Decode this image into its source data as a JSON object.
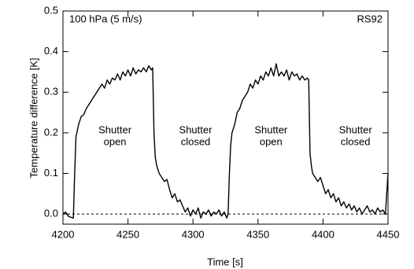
{
  "chart_data": {
    "type": "line",
    "xlabel": "Time [s]",
    "ylabel": "Temperature difference [K]",
    "corner_left": "100 hPa (5 m/s)",
    "corner_right": "RS92",
    "annotations": [
      {
        "x": 4240,
        "y": 0.19,
        "lines": [
          "Shutter",
          "open"
        ]
      },
      {
        "x": 4302,
        "y": 0.19,
        "lines": [
          "Shutter",
          "closed"
        ]
      },
      {
        "x": 4360,
        "y": 0.19,
        "lines": [
          "Shutter",
          "open"
        ]
      },
      {
        "x": 4425,
        "y": 0.19,
        "lines": [
          "Shutter",
          "closed"
        ]
      }
    ],
    "hline": 0,
    "xlim": [
      4200,
      4450
    ],
    "xticks": [
      4200,
      4250,
      4300,
      4350,
      4400,
      4450
    ],
    "ylim": [
      -0.025,
      0.5
    ],
    "yticks": [
      {
        "value": 0,
        "label": "0.0"
      },
      0.1,
      0.2,
      0.3,
      0.4,
      0.5
    ],
    "series": [
      {
        "color": "#000000",
        "x": [
          4200,
          4202,
          4204,
          4206,
          4208,
          4209,
          4210,
          4212,
          4214,
          4216,
          4218,
          4220,
          4222,
          4224,
          4226,
          4228,
          4230,
          4232,
          4234,
          4236,
          4238,
          4240,
          4242,
          4244,
          4246,
          4248,
          4250,
          4252,
          4254,
          4256,
          4258,
          4260,
          4262,
          4264,
          4266,
          4268,
          4269,
          4270,
          4271,
          4272,
          4274,
          4276,
          4278,
          4280,
          4282,
          4284,
          4286,
          4288,
          4290,
          4292,
          4294,
          4296,
          4298,
          4300,
          4302,
          4304,
          4306,
          4308,
          4310,
          4312,
          4314,
          4316,
          4318,
          4320,
          4322,
          4324,
          4326,
          4327,
          4328,
          4329,
          4330,
          4332,
          4334,
          4336,
          4338,
          4340,
          4342,
          4344,
          4346,
          4348,
          4350,
          4352,
          4354,
          4356,
          4358,
          4360,
          4362,
          4364,
          4366,
          4368,
          4370,
          4372,
          4374,
          4376,
          4378,
          4380,
          4382,
          4384,
          4386,
          4388,
          4389,
          4390,
          4391,
          4392,
          4394,
          4396,
          4398,
          4400,
          4402,
          4404,
          4406,
          4408,
          4410,
          4412,
          4414,
          4416,
          4418,
          4420,
          4422,
          4424,
          4426,
          4428,
          4430,
          4432,
          4434,
          4436,
          4438,
          4440,
          4442,
          4444,
          4446,
          4448,
          4449,
          4450
        ],
        "values": [
          0.0,
          0.005,
          -0.005,
          -0.008,
          -0.01,
          0.1,
          0.19,
          0.22,
          0.24,
          0.245,
          0.26,
          0.27,
          0.28,
          0.29,
          0.3,
          0.31,
          0.32,
          0.31,
          0.33,
          0.32,
          0.335,
          0.33,
          0.345,
          0.33,
          0.35,
          0.34,
          0.355,
          0.34,
          0.36,
          0.345,
          0.355,
          0.35,
          0.36,
          0.35,
          0.365,
          0.355,
          0.36,
          0.2,
          0.14,
          0.12,
          0.1,
          0.09,
          0.08,
          0.085,
          0.06,
          0.04,
          0.05,
          0.03,
          0.035,
          0.02,
          0.005,
          0.015,
          -0.005,
          0.01,
          0.0,
          0.015,
          -0.01,
          0.005,
          0.0,
          0.01,
          -0.005,
          0.005,
          0.0,
          0.01,
          -0.005,
          0.005,
          -0.01,
          0.0,
          0.1,
          0.17,
          0.2,
          0.22,
          0.25,
          0.26,
          0.28,
          0.29,
          0.3,
          0.32,
          0.31,
          0.33,
          0.32,
          0.34,
          0.33,
          0.35,
          0.34,
          0.36,
          0.34,
          0.37,
          0.34,
          0.35,
          0.34,
          0.355,
          0.33,
          0.35,
          0.34,
          0.345,
          0.33,
          0.34,
          0.33,
          0.335,
          0.33,
          0.15,
          0.12,
          0.1,
          0.09,
          0.08,
          0.09,
          0.07,
          0.05,
          0.06,
          0.04,
          0.05,
          0.03,
          0.04,
          0.02,
          0.03,
          0.015,
          0.025,
          0.01,
          0.02,
          0.005,
          0.015,
          0.0,
          0.01,
          0.02,
          0.005,
          0.01,
          0.0,
          0.015,
          0.005,
          0.01,
          0.0,
          0.05,
          0.1
        ]
      }
    ]
  }
}
